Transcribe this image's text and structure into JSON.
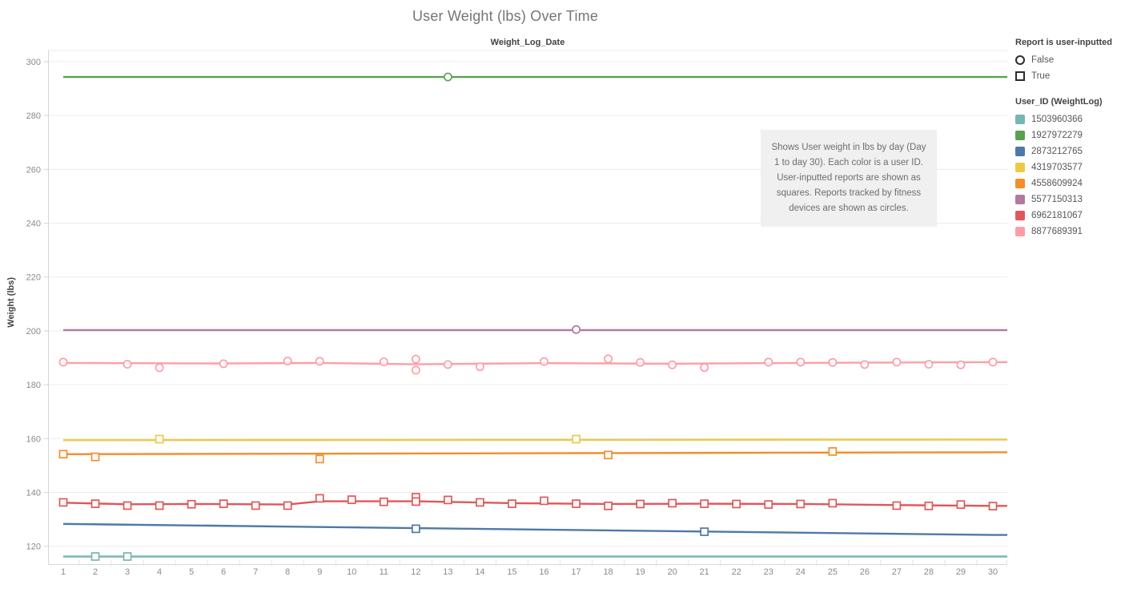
{
  "legend": {
    "shape": {
      "title": "Report is user-inputted",
      "items": [
        {
          "label": "False",
          "shape": "circle"
        },
        {
          "label": "True",
          "shape": "square"
        }
      ]
    },
    "color_title": "User_ID (WeightLog)"
  },
  "annotation": {
    "text": "Shows User weight in lbs by day (Day 1 to day 30). Each color is a user ID. User-inputted reports are shown as squares. Reports tracked by fitness devices are shown as circles."
  },
  "chart_data": {
    "type": "line",
    "title": "User Weight (lbs) Over Time",
    "xlabel": "Weight_Log_Date",
    "ylabel": "Weight (lbs)",
    "x_ticks": [
      1,
      2,
      3,
      4,
      5,
      6,
      7,
      8,
      9,
      10,
      11,
      12,
      13,
      14,
      15,
      16,
      17,
      18,
      19,
      20,
      21,
      22,
      23,
      24,
      25,
      26,
      27,
      28,
      29,
      30
    ],
    "y_ticks": [
      120,
      140,
      160,
      180,
      200,
      220,
      240,
      260,
      280,
      300
    ],
    "xlim": [
      0.5,
      30.5
    ],
    "ylim": [
      113,
      304
    ],
    "grid": "horizontal",
    "legend_position": "right",
    "shape_meaning": {
      "circle": "Report is user-inputted = False (tracked by fitness device)",
      "square": "Report is user-inputted = True (user-inputted)"
    },
    "series": [
      {
        "user_id": "1503960366",
        "color": "#76b7b2",
        "line_points": [
          [
            1,
            116.2
          ],
          [
            30,
            116.2
          ]
        ],
        "markers": {
          "shape": "square",
          "points": [
            [
              2,
              116.2
            ],
            [
              3,
              116.2
            ]
          ]
        }
      },
      {
        "user_id": "1927972279",
        "color": "#59a14f",
        "line_points": [
          [
            1,
            294.3
          ],
          [
            30,
            294.3
          ]
        ],
        "markers": {
          "shape": "circle",
          "points": [
            [
              13,
              294.3
            ]
          ]
        }
      },
      {
        "user_id": "2873212765",
        "color": "#4e79a7",
        "line_points": [
          [
            1,
            128.3
          ],
          [
            30,
            124.2
          ]
        ],
        "markers": {
          "shape": "square",
          "points": [
            [
              12,
              126.5
            ],
            [
              21,
              125.4
            ]
          ]
        }
      },
      {
        "user_id": "4319703577",
        "color": "#edc948",
        "line_points": [
          [
            1,
            159.4
          ],
          [
            30,
            159.6
          ]
        ],
        "markers": {
          "shape": "square",
          "points": [
            [
              4,
              159.8
            ],
            [
              17,
              159.8
            ]
          ]
        }
      },
      {
        "user_id": "4558609924",
        "color": "#f28e2b",
        "line_points": [
          [
            1,
            154.2
          ],
          [
            30,
            154.9
          ]
        ],
        "markers": {
          "shape": "square",
          "points": [
            [
              1,
              154.2
            ],
            [
              2,
              153.2
            ],
            [
              9,
              152.4
            ],
            [
              18,
              153.9
            ],
            [
              25,
              155.2
            ]
          ]
        }
      },
      {
        "user_id": "5577150313",
        "color": "#b07aa1",
        "line_points": [
          [
            1,
            200.3
          ],
          [
            30,
            200.3
          ]
        ],
        "markers": {
          "shape": "circle",
          "points": [
            [
              17,
              200.5
            ]
          ]
        }
      },
      {
        "user_id": "6962181067",
        "color": "#e15759",
        "line_points": [
          [
            1,
            136.2
          ],
          [
            3,
            135.6
          ],
          [
            5,
            135.7
          ],
          [
            8,
            135.5
          ],
          [
            9,
            136.7
          ],
          [
            12,
            136.7
          ],
          [
            13,
            136.5
          ],
          [
            15,
            136.0
          ],
          [
            18,
            135.7
          ],
          [
            21,
            135.8
          ],
          [
            24,
            135.7
          ],
          [
            27,
            135.3
          ],
          [
            30,
            135.0
          ]
        ],
        "markers": {
          "shape": "square",
          "points": [
            [
              1,
              136.3
            ],
            [
              2,
              135.8
            ],
            [
              3,
              135.1
            ],
            [
              4,
              135.1
            ],
            [
              5,
              135.6
            ],
            [
              6,
              135.8
            ],
            [
              7,
              135.1
            ],
            [
              8,
              135.1
            ],
            [
              9,
              137.8
            ],
            [
              10,
              137.3
            ],
            [
              11,
              136.5
            ],
            [
              12,
              138.2
            ],
            [
              12,
              136.6
            ],
            [
              13,
              137.2
            ],
            [
              14,
              136.3
            ],
            [
              15,
              135.8
            ],
            [
              16,
              136.9
            ],
            [
              17,
              135.8
            ],
            [
              18,
              135.0
            ],
            [
              19,
              135.7
            ],
            [
              20,
              136.0
            ],
            [
              21,
              135.8
            ],
            [
              22,
              135.7
            ],
            [
              23,
              135.5
            ],
            [
              24,
              135.7
            ],
            [
              25,
              136.0
            ],
            [
              27,
              135.1
            ],
            [
              28,
              135.0
            ],
            [
              29,
              135.5
            ],
            [
              30,
              134.9
            ]
          ]
        }
      },
      {
        "user_id": "8877689391",
        "color": "#ff9da7",
        "line_points": [
          [
            1,
            188.1
          ],
          [
            6,
            187.9
          ],
          [
            9,
            188.1
          ],
          [
            12,
            187.6
          ],
          [
            16,
            188.0
          ],
          [
            20,
            187.8
          ],
          [
            24,
            188.1
          ],
          [
            30,
            188.4
          ]
        ],
        "markers": {
          "shape": "circle",
          "points": [
            [
              1,
              188.4
            ],
            [
              3,
              187.6
            ],
            [
              4,
              186.3
            ],
            [
              6,
              187.8
            ],
            [
              8,
              188.8
            ],
            [
              9,
              188.7
            ],
            [
              11,
              188.5
            ],
            [
              12,
              189.5
            ],
            [
              12,
              185.4
            ],
            [
              13,
              187.5
            ],
            [
              14,
              186.7
            ],
            [
              16,
              188.6
            ],
            [
              18,
              189.6
            ],
            [
              19,
              188.3
            ],
            [
              20,
              187.4
            ],
            [
              21,
              186.4
            ],
            [
              23,
              188.4
            ],
            [
              24,
              188.4
            ],
            [
              25,
              188.3
            ],
            [
              26,
              187.5
            ],
            [
              27,
              188.4
            ],
            [
              28,
              187.6
            ],
            [
              29,
              187.4
            ],
            [
              30,
              188.4
            ]
          ]
        }
      }
    ]
  }
}
